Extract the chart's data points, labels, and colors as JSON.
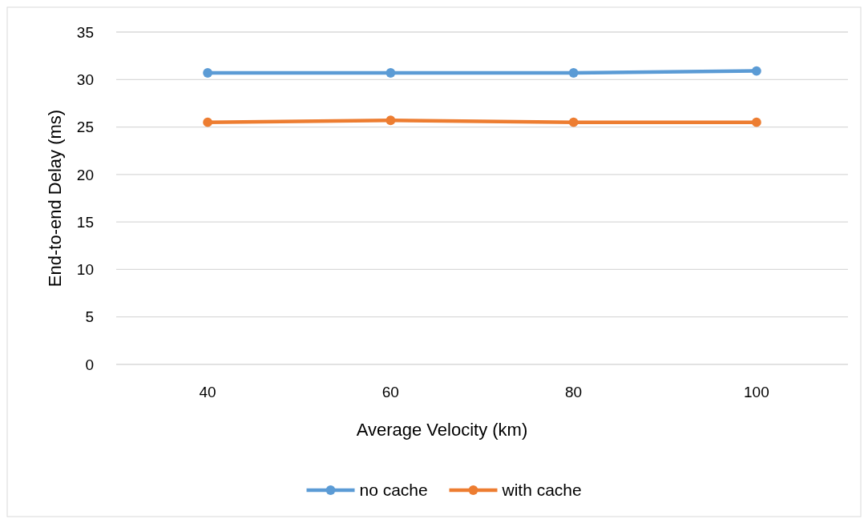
{
  "chart_data": {
    "type": "line",
    "xlabel": "Average Velocity  (km)",
    "ylabel": "End-to-end Delay (ms)",
    "categories": [
      "40",
      "60",
      "80",
      "100"
    ],
    "series": [
      {
        "name": "no cache",
        "color": "#5b9bd5",
        "values": [
          30.7,
          30.7,
          30.7,
          30.9
        ]
      },
      {
        "name": "with cache",
        "color": "#ed7d31",
        "values": [
          25.5,
          25.7,
          25.5,
          25.5
        ]
      }
    ],
    "ylim": [
      0,
      35
    ],
    "yticks": [
      0,
      5,
      10,
      15,
      20,
      25,
      30,
      35
    ],
    "grid": "y",
    "legend": "bottom",
    "marker": "circle",
    "line_style": "solid"
  }
}
